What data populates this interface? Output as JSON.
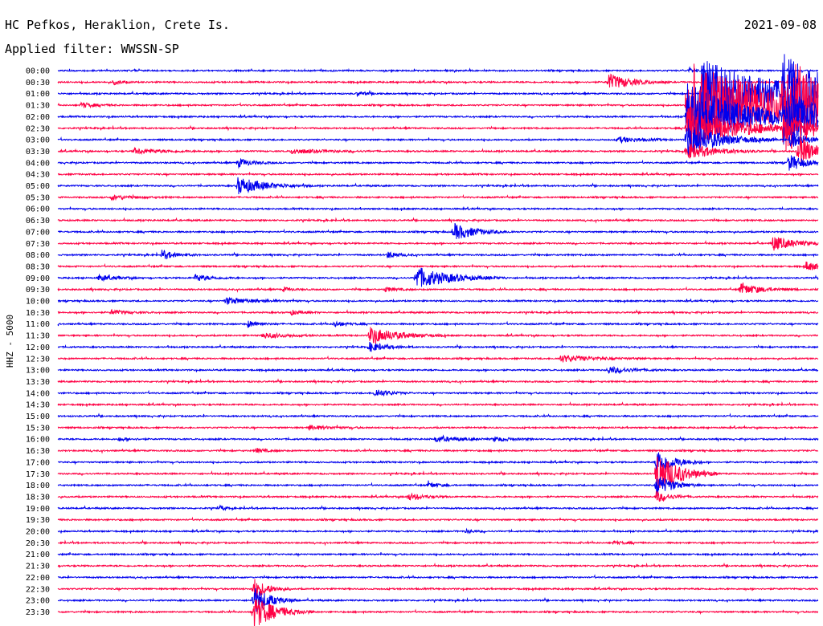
{
  "header": {
    "station": "HC Pefkos, Heraklion, Crete Is.",
    "date": "2021-09-08",
    "filter": "Applied filter: WWSSN-SP"
  },
  "chart_data": {
    "type": "line",
    "title": "HC Pefkos, Heraklion, Crete Is.",
    "subtitle": "Applied filter: WWSSN-SP",
    "date": "2021-09-08",
    "ylabel": "HHZ - 5000",
    "colors": {
      "even_row": "#0000ee",
      "odd_row": "#ff0044"
    },
    "row_labels": [
      "00:00",
      "00:30",
      "01:00",
      "01:30",
      "02:00",
      "02:30",
      "03:00",
      "03:30",
      "04:00",
      "04:30",
      "05:00",
      "05:30",
      "06:00",
      "06:30",
      "07:00",
      "07:30",
      "08:00",
      "08:30",
      "09:00",
      "09:30",
      "10:00",
      "10:30",
      "11:00",
      "11:30",
      "12:00",
      "12:30",
      "13:00",
      "13:30",
      "14:00",
      "14:30",
      "15:00",
      "15:30",
      "16:00",
      "16:30",
      "17:00",
      "17:30",
      "18:00",
      "18:30",
      "19:00",
      "19:30",
      "20:00",
      "20:30",
      "21:00",
      "21:30",
      "22:00",
      "22:30",
      "23:00",
      "23:30"
    ],
    "minutes_per_row": 30,
    "events": [
      {
        "row": 1,
        "minute": 21.7,
        "amp": 1.5,
        "dur": 0.8
      },
      {
        "row": 1,
        "minute": 2.2,
        "amp": 0.4,
        "dur": 0.3
      },
      {
        "row": 0,
        "minute": 24.9,
        "amp": 0.5,
        "dur": 0.2
      },
      {
        "row": 2,
        "minute": 25.4,
        "amp": 6.0,
        "dur": 3.2
      },
      {
        "row": 3,
        "minute": 24.8,
        "amp": 8.0,
        "dur": 3.5
      },
      {
        "row": 4,
        "minute": 24.8,
        "amp": 6.0,
        "dur": 2.2
      },
      {
        "row": 5,
        "minute": 24.8,
        "amp": 4.0,
        "dur": 1.8
      },
      {
        "row": 6,
        "minute": 24.8,
        "amp": 3.0,
        "dur": 1.2
      },
      {
        "row": 7,
        "minute": 24.8,
        "amp": 1.5,
        "dur": 1.0
      },
      {
        "row": 2,
        "minute": 28.6,
        "amp": 5.0,
        "dur": 2.0
      },
      {
        "row": 3,
        "minute": 28.6,
        "amp": 6.0,
        "dur": 2.5
      },
      {
        "row": 4,
        "minute": 28.6,
        "amp": 4.0,
        "dur": 1.5
      },
      {
        "row": 5,
        "minute": 28.6,
        "amp": 2.0,
        "dur": 1.0
      },
      {
        "row": 3,
        "minute": 0.9,
        "amp": 0.5,
        "dur": 0.5
      },
      {
        "row": 2,
        "minute": 11.8,
        "amp": 0.4,
        "dur": 0.4
      },
      {
        "row": 7,
        "minute": 29.2,
        "amp": 3.0,
        "dur": 0.6
      },
      {
        "row": 6,
        "minute": 28.9,
        "amp": 1.5,
        "dur": 0.6
      },
      {
        "row": 8,
        "minute": 28.8,
        "amp": 1.5,
        "dur": 0.6
      },
      {
        "row": 7,
        "minute": 9.2,
        "amp": 0.4,
        "dur": 1.2
      },
      {
        "row": 7,
        "minute": 3.0,
        "amp": 0.5,
        "dur": 1.0
      },
      {
        "row": 6,
        "minute": 22.1,
        "amp": 0.5,
        "dur": 0.8
      },
      {
        "row": 8,
        "minute": 7.1,
        "amp": 0.8,
        "dur": 0.5
      },
      {
        "row": 10,
        "minute": 7.1,
        "amp": 1.5,
        "dur": 1.0
      },
      {
        "row": 11,
        "minute": 2.1,
        "amp": 0.4,
        "dur": 0.8
      },
      {
        "row": 14,
        "minute": 15.6,
        "amp": 1.5,
        "dur": 0.8
      },
      {
        "row": 15,
        "minute": 28.2,
        "amp": 1.3,
        "dur": 0.8
      },
      {
        "row": 16,
        "minute": 4.1,
        "amp": 0.8,
        "dur": 0.5
      },
      {
        "row": 16,
        "minute": 13.0,
        "amp": 0.6,
        "dur": 0.4
      },
      {
        "row": 17,
        "minute": 29.5,
        "amp": 0.8,
        "dur": 0.6
      },
      {
        "row": 18,
        "minute": 14.1,
        "amp": 2.0,
        "dur": 1.2
      },
      {
        "row": 18,
        "minute": 1.6,
        "amp": 0.5,
        "dur": 0.6
      },
      {
        "row": 18,
        "minute": 5.4,
        "amp": 0.6,
        "dur": 0.6
      },
      {
        "row": 19,
        "minute": 26.9,
        "amp": 1.0,
        "dur": 0.8
      },
      {
        "row": 19,
        "minute": 8.9,
        "amp": 0.4,
        "dur": 0.3
      },
      {
        "row": 19,
        "minute": 12.9,
        "amp": 0.4,
        "dur": 0.4
      },
      {
        "row": 20,
        "minute": 6.6,
        "amp": 0.6,
        "dur": 1.0
      },
      {
        "row": 21,
        "minute": 2.1,
        "amp": 0.4,
        "dur": 0.6
      },
      {
        "row": 21,
        "minute": 9.2,
        "amp": 0.4,
        "dur": 0.4
      },
      {
        "row": 22,
        "minute": 7.5,
        "amp": 0.6,
        "dur": 0.4
      },
      {
        "row": 22,
        "minute": 10.9,
        "amp": 0.5,
        "dur": 0.4
      },
      {
        "row": 23,
        "minute": 12.3,
        "amp": 1.5,
        "dur": 1.0
      },
      {
        "row": 23,
        "minute": 8.1,
        "amp": 0.5,
        "dur": 0.8
      },
      {
        "row": 24,
        "minute": 12.3,
        "amp": 0.8,
        "dur": 0.6
      },
      {
        "row": 25,
        "minute": 19.8,
        "amp": 0.6,
        "dur": 1.2
      },
      {
        "row": 26,
        "minute": 21.7,
        "amp": 0.6,
        "dur": 0.8
      },
      {
        "row": 28,
        "minute": 12.5,
        "amp": 0.8,
        "dur": 0.5
      },
      {
        "row": 31,
        "minute": 9.9,
        "amp": 0.4,
        "dur": 0.8
      },
      {
        "row": 32,
        "minute": 14.9,
        "amp": 0.5,
        "dur": 0.8
      },
      {
        "row": 32,
        "minute": 17.2,
        "amp": 0.4,
        "dur": 0.6
      },
      {
        "row": 32,
        "minute": 2.4,
        "amp": 0.3,
        "dur": 0.4
      },
      {
        "row": 33,
        "minute": 7.8,
        "amp": 0.4,
        "dur": 0.4
      },
      {
        "row": 34,
        "minute": 23.6,
        "amp": 2.5,
        "dur": 0.6
      },
      {
        "row": 35,
        "minute": 23.6,
        "amp": 4.0,
        "dur": 0.8
      },
      {
        "row": 36,
        "minute": 23.6,
        "amp": 2.0,
        "dur": 0.6
      },
      {
        "row": 37,
        "minute": 23.6,
        "amp": 1.0,
        "dur": 0.5
      },
      {
        "row": 37,
        "minute": 13.8,
        "amp": 0.6,
        "dur": 0.6
      },
      {
        "row": 36,
        "minute": 14.6,
        "amp": 0.5,
        "dur": 0.4
      },
      {
        "row": 38,
        "minute": 6.4,
        "amp": 0.5,
        "dur": 0.2
      },
      {
        "row": 40,
        "minute": 16.1,
        "amp": 0.3,
        "dur": 0.3
      },
      {
        "row": 41,
        "minute": 21.9,
        "amp": 0.3,
        "dur": 0.4
      },
      {
        "row": 45,
        "minute": 7.7,
        "amp": 2.0,
        "dur": 0.5
      },
      {
        "row": 46,
        "minute": 7.7,
        "amp": 2.5,
        "dur": 0.6
      },
      {
        "row": 47,
        "minute": 7.7,
        "amp": 3.0,
        "dur": 0.8
      }
    ]
  }
}
